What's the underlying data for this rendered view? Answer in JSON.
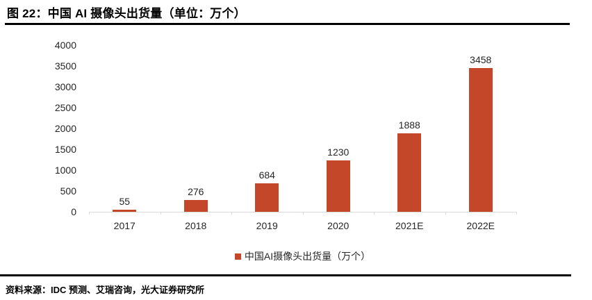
{
  "header": {
    "title": "图 22：中国 AI 摄像头出货量（单位：万个）"
  },
  "source": {
    "text": "资料来源：IDC 预测、艾瑞咨询，光大证券研究所"
  },
  "colors": {
    "bar": "#c4472a",
    "axis": "#d9d9d9",
    "rule": "#000000"
  },
  "chart_data": {
    "type": "bar",
    "title": "图 22：中国 AI 摄像头出货量（单位：万个）",
    "categories": [
      "2017",
      "2018",
      "2019",
      "2020",
      "2021E",
      "2022E"
    ],
    "values": [
      55,
      276,
      684,
      1230,
      1888,
      3458
    ],
    "legend": [
      "中国AI摄像头出货量（万个）"
    ],
    "legend_position": "bottom",
    "xlabel": "",
    "ylabel": "",
    "ylim": [
      0,
      4000
    ],
    "ytick_step": 500,
    "grid": false,
    "data_labels": true
  }
}
